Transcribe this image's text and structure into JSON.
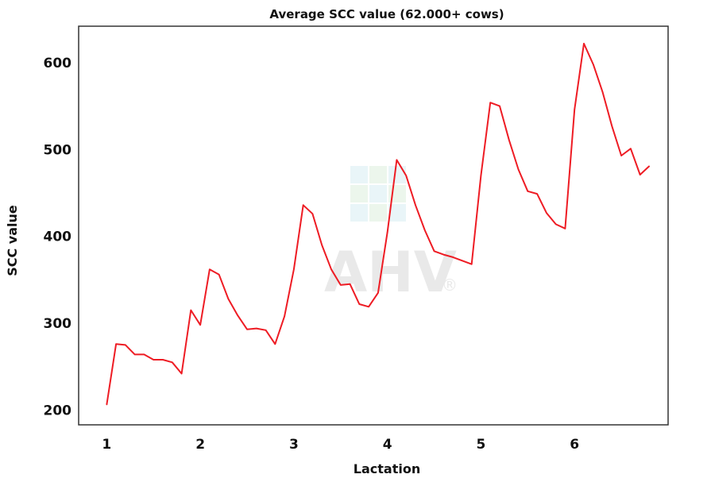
{
  "chart_data": {
    "type": "line",
    "title": "Average SCC value (62.000+ cows)",
    "xlabel": "Lactation",
    "ylabel": "SCC value",
    "xlim": [
      0.7,
      7.0
    ],
    "ylim": [
      183,
      642
    ],
    "x_ticks": [
      1,
      2,
      3,
      4,
      5,
      6
    ],
    "y_ticks": [
      200,
      300,
      400,
      500,
      600
    ],
    "grid": false,
    "legend": "none",
    "watermark": "AHV",
    "series": [
      {
        "color": "#ee1c24",
        "x": [
          1.0,
          1.1,
          1.2,
          1.3,
          1.4,
          1.5,
          1.6,
          1.7,
          1.8,
          1.9,
          2.0,
          2.1,
          2.2,
          2.3,
          2.4,
          2.5,
          2.6,
          2.7,
          2.8,
          2.9,
          3.0,
          3.1,
          3.2,
          3.3,
          3.4,
          3.5,
          3.6,
          3.7,
          3.8,
          3.9,
          4.0,
          4.1,
          4.2,
          4.3,
          4.4,
          4.5,
          4.6,
          4.7,
          4.8,
          4.9,
          5.0,
          5.1,
          5.2,
          5.3,
          5.4,
          5.5,
          5.6,
          5.7,
          5.8,
          5.9,
          6.0,
          6.1,
          6.2,
          6.3,
          6.4,
          6.5,
          6.6,
          6.7,
          6.8
        ],
        "y": [
          206,
          276,
          275,
          264,
          264,
          258,
          258,
          255,
          242,
          315,
          298,
          362,
          356,
          328,
          309,
          293,
          294,
          292,
          276,
          308,
          362,
          436,
          426,
          390,
          362,
          344,
          345,
          322,
          319,
          335,
          405,
          488,
          470,
          436,
          407,
          383,
          379,
          376,
          372,
          368,
          470,
          554,
          550,
          511,
          477,
          452,
          449,
          427,
          414,
          409,
          546,
          622,
          598,
          566,
          527,
          493,
          501,
          471,
          481
        ]
      }
    ]
  }
}
